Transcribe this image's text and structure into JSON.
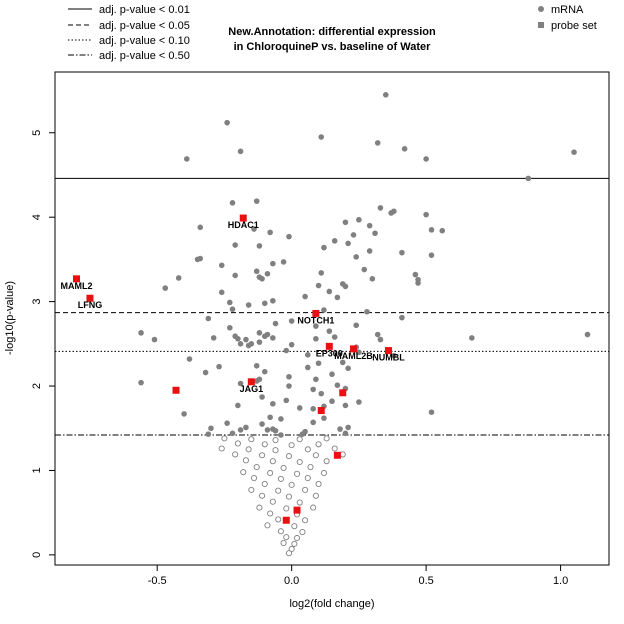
{
  "chart_data": {
    "type": "scatter",
    "title": "New.Annotation: differential expression",
    "subtitle": "in ChloroquineP vs. baseline of Water",
    "xlabel": "log2(fold change)",
    "ylabel": "-log10(p-value)",
    "xlim": [
      -0.88,
      1.18
    ],
    "ylim": [
      -0.12,
      5.72
    ],
    "x_ticks": [
      -0.5,
      0.0,
      0.5,
      1.0
    ],
    "x_tick_labels": [
      "-0.5",
      "0.0",
      "0.5",
      "1.0"
    ],
    "y_ticks": [
      0,
      1,
      2,
      3,
      4,
      5
    ],
    "y_tick_labels": [
      "0",
      "1",
      "2",
      "3",
      "4",
      "5"
    ],
    "threshold_lines": [
      {
        "label": "adj. p-value < 0.01",
        "y": 4.46,
        "style": "solid"
      },
      {
        "label": "adj. p-value < 0.05",
        "y": 2.87,
        "style": "dashed"
      },
      {
        "label": "adj. p-value < 0.10",
        "y": 2.41,
        "style": "dotted"
      },
      {
        "label": "adj. p-value < 0.50",
        "y": 1.42,
        "style": "dashdot"
      }
    ],
    "legend_points": [
      {
        "label": "mRNA",
        "marker": "filled-circle",
        "color": "#808080"
      },
      {
        "label": "probe set",
        "marker": "square",
        "color": "#808080"
      }
    ],
    "colors": {
      "mrna": "#808080",
      "open": "#808080",
      "highlight": "#e81010",
      "frame": "#000000"
    },
    "highlighted_probes": [
      {
        "gene": "HDAC1",
        "x": -0.18,
        "y": 3.99
      },
      {
        "gene": "MAML2",
        "x": -0.8,
        "y": 3.27
      },
      {
        "gene": "LFNG",
        "x": -0.75,
        "y": 3.04
      },
      {
        "gene": "NOTCH1",
        "x": 0.09,
        "y": 2.86
      },
      {
        "gene": "EP300",
        "x": 0.14,
        "y": 2.47
      },
      {
        "gene": "MAML2B",
        "x": 0.23,
        "y": 2.44
      },
      {
        "gene": "NUMBL",
        "x": 0.36,
        "y": 2.42
      },
      {
        "gene": "JAG1",
        "x": -0.15,
        "y": 2.05
      },
      {
        "gene": "",
        "x": -0.43,
        "y": 1.95
      },
      {
        "gene": "",
        "x": 0.19,
        "y": 1.92
      },
      {
        "gene": "",
        "x": 0.11,
        "y": 1.71
      },
      {
        "gene": "",
        "x": 0.17,
        "y": 1.18
      },
      {
        "gene": "",
        "x": 0.02,
        "y": 0.53
      },
      {
        "gene": "",
        "x": -0.02,
        "y": 0.41
      }
    ],
    "significant_points": [
      [
        0.35,
        5.45
      ],
      [
        -0.24,
        5.12
      ],
      [
        0.11,
        4.95
      ],
      [
        0.32,
        4.88
      ],
      [
        -0.19,
        4.78
      ],
      [
        0.42,
        4.81
      ],
      [
        -0.39,
        4.69
      ],
      [
        0.5,
        4.69
      ],
      [
        1.05,
        4.77
      ],
      [
        0.88,
        4.46
      ]
    ],
    "mrna_points": [
      [
        -0.22,
        4.17
      ],
      [
        -0.13,
        4.19
      ],
      [
        0.33,
        4.11
      ],
      [
        0.38,
        4.07
      ],
      [
        0.37,
        4.05
      ],
      [
        0.5,
        4.03
      ],
      [
        0.2,
        3.94
      ],
      [
        0.25,
        3.97
      ],
      [
        0.29,
        3.9
      ],
      [
        -0.34,
        3.88
      ],
      [
        0.56,
        3.84
      ],
      [
        0.52,
        3.85
      ],
      [
        -0.14,
        3.86
      ],
      [
        -0.08,
        3.82
      ],
      [
        0.23,
        3.79
      ],
      [
        0.31,
        3.81
      ],
      [
        -0.01,
        3.77
      ],
      [
        0.16,
        3.72
      ],
      [
        0.21,
        3.69
      ],
      [
        -0.21,
        3.67
      ],
      [
        -0.12,
        3.66
      ],
      [
        0.12,
        3.64
      ],
      [
        0.29,
        3.6
      ],
      [
        0.41,
        3.58
      ],
      [
        0.52,
        3.55
      ],
      [
        0.24,
        3.53
      ],
      [
        -0.35,
        3.5
      ],
      [
        -0.34,
        3.51
      ],
      [
        -0.03,
        3.47
      ],
      [
        -0.26,
        3.43
      ],
      [
        -0.07,
        3.45
      ],
      [
        0.27,
        3.38
      ],
      [
        0.11,
        3.34
      ],
      [
        0.46,
        3.32
      ],
      [
        -0.21,
        3.31
      ],
      [
        -0.13,
        3.36
      ],
      [
        -0.12,
        3.29
      ],
      [
        -0.11,
        3.27
      ],
      [
        -0.09,
        3.33
      ],
      [
        -0.42,
        3.28
      ],
      [
        0.3,
        3.27
      ],
      [
        0.47,
        3.26
      ],
      [
        -0.47,
        3.16
      ],
      [
        0.19,
        3.21
      ],
      [
        0.1,
        3.19
      ],
      [
        0.2,
        3.18
      ],
      [
        0.47,
        3.22
      ],
      [
        -0.26,
        3.11
      ],
      [
        0.14,
        3.12
      ],
      [
        0.05,
        3.06
      ],
      [
        0.17,
        3.05
      ],
      [
        -0.23,
        2.99
      ],
      [
        -0.1,
        2.98
      ],
      [
        -0.07,
        3.01
      ],
      [
        -0.16,
        2.96
      ],
      [
        0.12,
        2.9
      ],
      [
        -0.22,
        2.91
      ],
      [
        0.28,
        2.88
      ],
      [
        0.41,
        2.81
      ],
      [
        -0.31,
        2.8
      ],
      [
        0.0,
        2.77
      ],
      [
        -0.06,
        2.74
      ],
      [
        0.09,
        2.71
      ],
      [
        -0.23,
        2.69
      ],
      [
        0.24,
        2.72
      ],
      [
        0.14,
        2.65
      ],
      [
        -0.12,
        2.63
      ],
      [
        -0.56,
        2.63
      ],
      [
        -0.51,
        2.55
      ],
      [
        -0.29,
        2.57
      ],
      [
        -0.21,
        2.59
      ],
      [
        -0.2,
        2.56
      ],
      [
        -0.17,
        2.55
      ],
      [
        -0.1,
        2.59
      ],
      [
        -0.09,
        2.61
      ],
      [
        -0.07,
        2.57
      ],
      [
        0.09,
        2.56
      ],
      [
        0.16,
        2.58
      ],
      [
        0.32,
        2.61
      ],
      [
        0.33,
        2.55
      ],
      [
        0.67,
        2.57
      ],
      [
        1.1,
        2.61
      ],
      [
        -0.19,
        2.5
      ],
      [
        -0.15,
        2.5
      ],
      [
        -0.12,
        2.52
      ],
      [
        0.0,
        2.49
      ],
      [
        -0.16,
        2.48
      ],
      [
        0.24,
        2.46
      ],
      [
        -0.02,
        2.42
      ],
      [
        0.06,
        2.37
      ],
      [
        0.25,
        2.4
      ],
      [
        0.38,
        2.36
      ],
      [
        -0.38,
        2.32
      ],
      [
        0.19,
        2.28
      ],
      [
        -0.27,
        2.23
      ],
      [
        -0.13,
        2.24
      ],
      [
        0.06,
        2.22
      ],
      [
        0.1,
        2.27
      ],
      [
        0.21,
        2.21
      ],
      [
        -0.32,
        2.16
      ],
      [
        -0.1,
        2.17
      ],
      [
        0.15,
        2.14
      ],
      [
        -0.01,
        2.11
      ],
      [
        -0.12,
        2.08
      ],
      [
        -0.13,
        2.06
      ],
      [
        0.09,
        2.08
      ],
      [
        -0.19,
        2.03
      ],
      [
        -0.01,
        2.0
      ],
      [
        -0.56,
        2.04
      ],
      [
        0.17,
        2.01
      ],
      [
        0.08,
        1.96
      ],
      [
        0.2,
        1.97
      ],
      [
        0.11,
        1.91
      ],
      [
        -0.11,
        1.87
      ],
      [
        0.15,
        1.82
      ],
      [
        -0.07,
        1.79
      ],
      [
        -0.02,
        1.83
      ],
      [
        0.25,
        1.81
      ],
      [
        -0.2,
        1.77
      ],
      [
        0.03,
        1.74
      ],
      [
        0.08,
        1.73
      ],
      [
        0.12,
        1.76
      ],
      [
        0.2,
        1.77
      ],
      [
        -0.4,
        1.67
      ],
      [
        -0.08,
        1.63
      ],
      [
        -0.04,
        1.61
      ],
      [
        0.12,
        1.62
      ],
      [
        0.52,
        1.69
      ],
      [
        -0.24,
        1.56
      ],
      [
        -0.11,
        1.55
      ],
      [
        0.08,
        1.57
      ],
      [
        0.21,
        1.51
      ],
      [
        -0.3,
        1.5
      ],
      [
        -0.19,
        1.48
      ],
      [
        -0.17,
        1.51
      ],
      [
        -0.09,
        1.48
      ],
      [
        -0.07,
        1.49
      ],
      [
        -0.06,
        1.47
      ],
      [
        0.05,
        1.46
      ],
      [
        0.18,
        1.49
      ],
      [
        -0.31,
        1.43
      ],
      [
        -0.22,
        1.44
      ],
      [
        -0.04,
        1.42
      ],
      [
        0.04,
        1.43
      ],
      [
        0.2,
        1.44
      ]
    ],
    "open_points": [
      [
        -0.25,
        1.38
      ],
      [
        -0.15,
        1.37
      ],
      [
        -0.06,
        1.36
      ],
      [
        0.03,
        1.37
      ],
      [
        0.13,
        1.38
      ],
      [
        -0.2,
        1.32
      ],
      [
        -0.1,
        1.31
      ],
      [
        0.0,
        1.3
      ],
      [
        0.1,
        1.31
      ],
      [
        -0.26,
        1.26
      ],
      [
        -0.16,
        1.25
      ],
      [
        -0.06,
        1.24
      ],
      [
        0.06,
        1.25
      ],
      [
        0.16,
        1.26
      ],
      [
        -0.21,
        1.19
      ],
      [
        -0.11,
        1.18
      ],
      [
        -0.01,
        1.17
      ],
      [
        0.09,
        1.18
      ],
      [
        0.19,
        1.19
      ],
      [
        -0.17,
        1.12
      ],
      [
        -0.07,
        1.11
      ],
      [
        0.03,
        1.1
      ],
      [
        0.13,
        1.11
      ],
      [
        -0.13,
        1.04
      ],
      [
        -0.03,
        1.03
      ],
      [
        0.07,
        1.04
      ],
      [
        -0.18,
        0.98
      ],
      [
        -0.08,
        0.97
      ],
      [
        0.02,
        0.96
      ],
      [
        0.12,
        0.97
      ],
      [
        -0.14,
        0.91
      ],
      [
        -0.04,
        0.9
      ],
      [
        0.06,
        0.91
      ],
      [
        -0.1,
        0.84
      ],
      [
        0.0,
        0.83
      ],
      [
        0.1,
        0.84
      ],
      [
        -0.15,
        0.77
      ],
      [
        -0.05,
        0.76
      ],
      [
        0.05,
        0.77
      ],
      [
        -0.11,
        0.7
      ],
      [
        -0.01,
        0.69
      ],
      [
        0.09,
        0.7
      ],
      [
        -0.07,
        0.63
      ],
      [
        0.03,
        0.62
      ],
      [
        -0.12,
        0.56
      ],
      [
        -0.02,
        0.55
      ],
      [
        0.08,
        0.56
      ],
      [
        -0.08,
        0.49
      ],
      [
        0.02,
        0.48
      ],
      [
        -0.05,
        0.42
      ],
      [
        0.05,
        0.41
      ],
      [
        -0.09,
        0.35
      ],
      [
        0.01,
        0.34
      ],
      [
        -0.04,
        0.28
      ],
      [
        0.04,
        0.27
      ],
      [
        -0.02,
        0.21
      ],
      [
        0.02,
        0.2
      ],
      [
        -0.03,
        0.14
      ],
      [
        0.01,
        0.13
      ],
      [
        0.0,
        0.07
      ],
      [
        -0.01,
        0.02
      ]
    ]
  }
}
